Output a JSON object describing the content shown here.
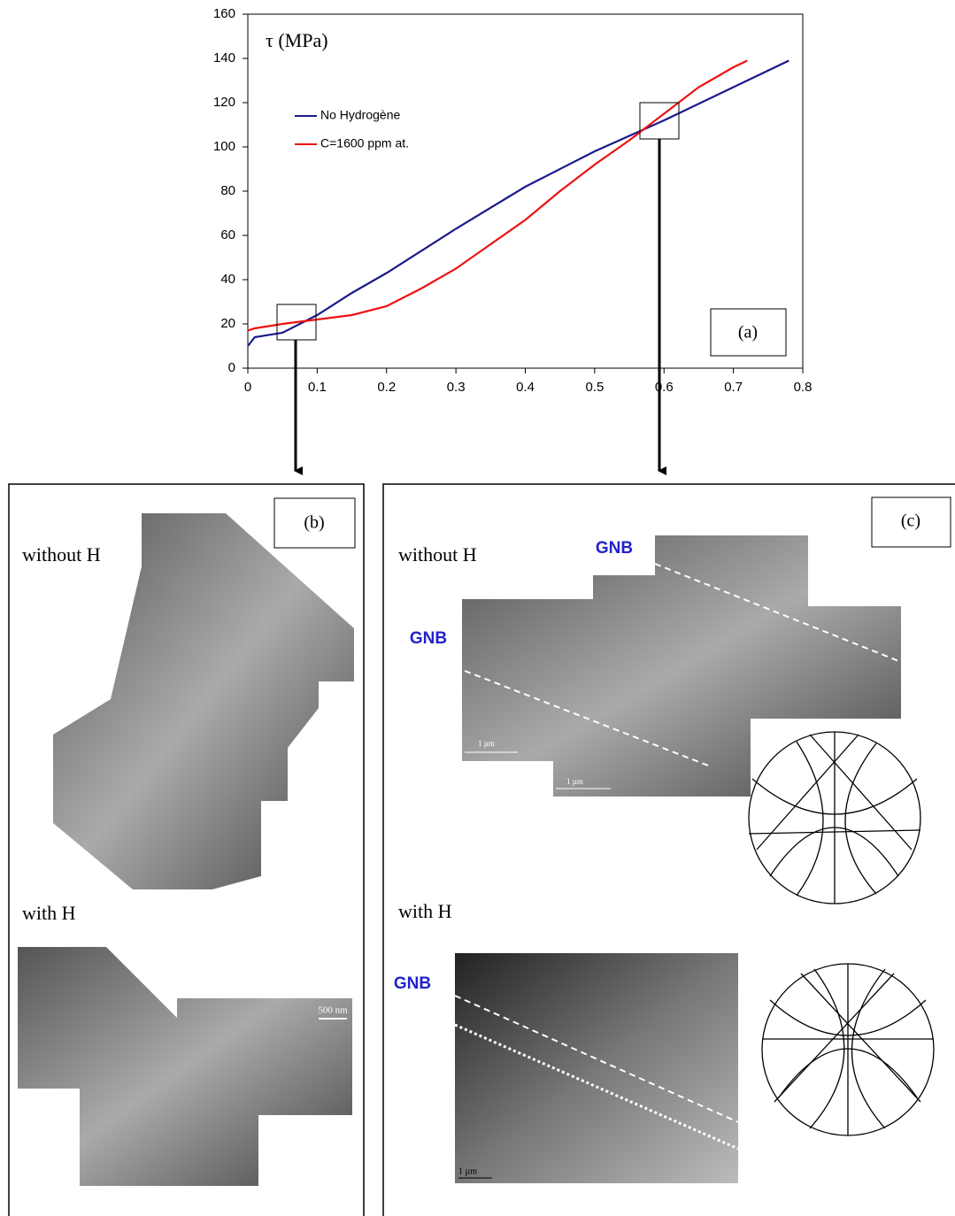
{
  "chart_data": {
    "type": "line",
    "ylabel": "τ (MPa)",
    "panel_label": "(a)",
    "xlim": [
      0,
      0.8
    ],
    "xticks": [
      0,
      0.1,
      0.2,
      0.3,
      0.4,
      0.5,
      0.6,
      0.7,
      0.8
    ],
    "ylim": [
      0,
      160
    ],
    "yticks": [
      0,
      20,
      40,
      60,
      80,
      100,
      120,
      140,
      160
    ],
    "series": [
      {
        "name": "No Hydrogène",
        "color": "#1a1a8c",
        "x": [
          0,
          0.01,
          0.05,
          0.1,
          0.15,
          0.2,
          0.3,
          0.4,
          0.5,
          0.6,
          0.7,
          0.78
        ],
        "values": [
          10,
          14,
          16,
          24,
          34,
          43,
          63,
          82,
          98,
          112,
          127,
          139
        ]
      },
      {
        "name": "C=1600 ppm at.",
        "color": "#ee1111",
        "x": [
          0,
          0.01,
          0.05,
          0.1,
          0.15,
          0.2,
          0.25,
          0.3,
          0.35,
          0.4,
          0.45,
          0.5,
          0.55,
          0.6,
          0.65,
          0.7,
          0.72
        ],
        "values": [
          17,
          18,
          20,
          22,
          24,
          28,
          36,
          45,
          56,
          67,
          80,
          92,
          103,
          115,
          127,
          136,
          139
        ]
      }
    ]
  },
  "panels": {
    "b": {
      "label": "(b)",
      "without": "without H",
      "with": "with H",
      "scale": "500 nm"
    },
    "c": {
      "label": "(c)",
      "without": "without H",
      "with": "with H",
      "gnb": [
        "GNB",
        "GNB",
        "GNB"
      ],
      "scales": [
        "1 µm",
        "1 µm",
        "1 µm"
      ]
    }
  }
}
